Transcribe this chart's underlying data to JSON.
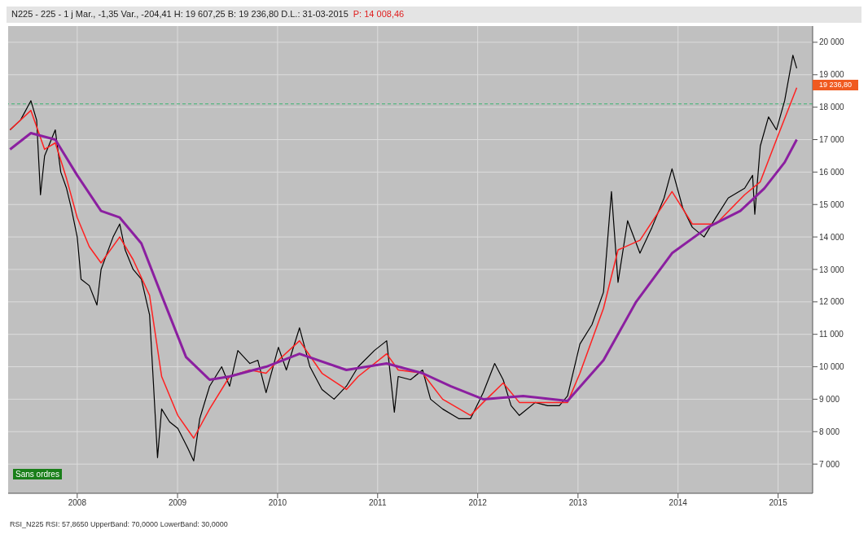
{
  "chart_data": {
    "type": "line",
    "title": "N225 - 225 - 1 j Mar., -1,35 Var., -204,41 H: 19 607,25 B: 19 236,80 D.L.: 31-03-2015",
    "subtitle": "P: 14 008,46",
    "xlim": [
      "2007-04-24",
      "2015-05-07"
    ],
    "xticks": [
      {
        "value": "2008-01-01",
        "label": "2008"
      },
      {
        "value": "2009-01-01",
        "label": "2009"
      },
      {
        "value": "2010-01-01",
        "label": "2010"
      },
      {
        "value": "2011-01-01",
        "label": "2011"
      },
      {
        "value": "2012-01-01",
        "label": "2012"
      },
      {
        "value": "2013-01-01",
        "label": "2013"
      },
      {
        "value": "2014-01-01",
        "label": "2014"
      },
      {
        "value": "2015-01-01",
        "label": "2015"
      }
    ],
    "ylim": [
      6100,
      20500
    ],
    "yticks": [
      {
        "value": 7000,
        "label": "7 000"
      },
      {
        "value": 8000,
        "label": "8 000"
      },
      {
        "value": 9000,
        "label": "9 000"
      },
      {
        "value": 10000,
        "label": "10 000"
      },
      {
        "value": 11000,
        "label": "11 000"
      },
      {
        "value": 12000,
        "label": "12 000"
      },
      {
        "value": 13000,
        "label": "13 000"
      },
      {
        "value": 14000,
        "label": "14 000"
      },
      {
        "value": 15000,
        "label": "15 000"
      },
      {
        "value": 16000,
        "label": "16 000"
      },
      {
        "value": 17000,
        "label": "17 000"
      },
      {
        "value": 18000,
        "label": "18 000"
      },
      {
        "value": 19000,
        "label": "19 000"
      },
      {
        "value": 20000,
        "label": "20 000"
      }
    ],
    "grid": true,
    "ref_lines": [
      {
        "axis": "y",
        "value": 18100,
        "color": "#3cb371",
        "line_style": "dashed"
      }
    ],
    "annotations": [
      "Sans ordres",
      "RSI_N225 RSI: 57,8650 UpperBand: 70,0000 LowerBand: 30,0000",
      "19 236,80"
    ],
    "series": [
      {
        "color": "#000000",
        "x": [
          "2007-05-01",
          "2007-06-08",
          "2007-07-16",
          "2007-08-06",
          "2007-08-20",
          "2007-09-04",
          "2007-10-13",
          "2007-11-02",
          "2007-11-23",
          "2007-12-10",
          "2008-01-01",
          "2008-01-15",
          "2008-02-14",
          "2008-03-13",
          "2008-03-28",
          "2008-05-11",
          "2008-06-04",
          "2008-06-24",
          "2008-07-23",
          "2008-08-22",
          "2008-09-21",
          "2008-10-05",
          "2008-10-20",
          "2008-11-04",
          "2008-12-03",
          "2009-01-02",
          "2009-02-07",
          "2009-03-01",
          "2009-03-23",
          "2009-04-28",
          "2009-06-11",
          "2009-07-10",
          "2009-08-09",
          "2009-09-22",
          "2009-10-21",
          "2009-11-20",
          "2010-01-04",
          "2010-02-02",
          "2010-03-22",
          "2010-04-29",
          "2010-06-12",
          "2010-07-26",
          "2010-09-09",
          "2010-10-22",
          "2010-12-20",
          "2011-02-03",
          "2011-03-03",
          "2011-03-17",
          "2011-05-01",
          "2011-06-14",
          "2011-07-13",
          "2011-08-26",
          "2011-10-24",
          "2011-12-06",
          "2012-01-21",
          "2012-03-03",
          "2012-04-03",
          "2012-05-02",
          "2012-06-01",
          "2012-07-29",
          "2012-09-12",
          "2012-10-25",
          "2012-11-24",
          "2013-01-08",
          "2013-02-21",
          "2013-04-04",
          "2013-05-03",
          "2013-05-27",
          "2013-07-01",
          "2013-08-15",
          "2013-09-28",
          "2013-11-11",
          "2013-12-10",
          "2014-01-18",
          "2014-02-22",
          "2014-04-06",
          "2014-05-19",
          "2014-07-03",
          "2014-09-01",
          "2014-09-30",
          "2014-10-08",
          "2014-10-28",
          "2014-11-27",
          "2014-12-26",
          "2015-01-25",
          "2015-02-24",
          "2015-03-10"
        ],
        "values": [
          17300,
          17600,
          18200,
          17600,
          15300,
          16500,
          17300,
          16000,
          15500,
          14900,
          14000,
          12700,
          12500,
          11900,
          13000,
          14000,
          14400,
          13600,
          13000,
          12700,
          11600,
          9500,
          7200,
          8700,
          8300,
          8100,
          7500,
          7100,
          8400,
          9400,
          10000,
          9400,
          10500,
          10100,
          10200,
          9200,
          10600,
          9900,
          11200,
          10000,
          9300,
          9000,
          9400,
          10000,
          10500,
          10800,
          8600,
          9700,
          9600,
          9900,
          9000,
          8700,
          8400,
          8400,
          9200,
          10100,
          9600,
          8800,
          8500,
          8900,
          8800,
          8800,
          9100,
          10700,
          11300,
          12300,
          15400,
          12600,
          14500,
          13500,
          14300,
          15200,
          16100,
          14900,
          14300,
          14000,
          14600,
          15200,
          15500,
          15900,
          14700,
          16800,
          17700,
          17300,
          18200,
          19600,
          19200
        ]
      },
      {
        "color": "#ff2020",
        "x": [
          "2007-05-01",
          "2007-07-16",
          "2007-09-04",
          "2007-10-13",
          "2007-11-23",
          "2008-01-01",
          "2008-02-14",
          "2008-03-28",
          "2008-06-04",
          "2008-07-23",
          "2008-09-21",
          "2008-11-04",
          "2009-01-02",
          "2009-03-01",
          "2009-04-28",
          "2009-07-10",
          "2009-09-22",
          "2009-11-20",
          "2010-01-04",
          "2010-03-22",
          "2010-06-12",
          "2010-09-09",
          "2010-10-22",
          "2011-02-03",
          "2011-03-17",
          "2011-06-14",
          "2011-08-26",
          "2011-12-06",
          "2012-01-21",
          "2012-04-03",
          "2012-06-01",
          "2012-09-12",
          "2012-11-24",
          "2013-01-08",
          "2013-04-04",
          "2013-05-27",
          "2013-08-15",
          "2013-12-10",
          "2014-02-22",
          "2014-05-19",
          "2014-09-01",
          "2014-10-28",
          "2014-12-26",
          "2015-03-10"
        ],
        "values": [
          17300,
          17900,
          16700,
          16900,
          15800,
          14600,
          13700,
          13200,
          14000,
          13300,
          12200,
          9700,
          8500,
          7800,
          8700,
          9700,
          9900,
          9800,
          10200,
          10800,
          9800,
          9300,
          9700,
          10400,
          9900,
          9800,
          9000,
          8500,
          8900,
          9500,
          8900,
          8900,
          8900,
          9800,
          11800,
          13600,
          13900,
          15400,
          14400,
          14400,
          15300,
          15700,
          17000,
          18600
        ]
      },
      {
        "color": "#8b1fa0",
        "x": [
          "2007-05-01",
          "2007-07-16",
          "2007-10-13",
          "2008-01-01",
          "2008-03-28",
          "2008-06-04",
          "2008-08-22",
          "2008-11-04",
          "2009-02-01",
          "2009-04-28",
          "2009-07-10",
          "2009-11-20",
          "2010-03-22",
          "2010-09-09",
          "2011-02-03",
          "2011-06-14",
          "2011-09-24",
          "2012-01-21",
          "2012-06-15",
          "2012-11-24",
          "2013-04-04",
          "2013-08-01",
          "2013-12-10",
          "2014-04-20",
          "2014-08-16",
          "2014-11-12",
          "2015-01-25",
          "2015-03-10"
        ],
        "values": [
          16700,
          17200,
          17000,
          15900,
          14800,
          14600,
          13800,
          12200,
          10300,
          9600,
          9700,
          10000,
          10400,
          9900,
          10100,
          9800,
          9400,
          9000,
          9100,
          8950,
          10200,
          12000,
          13500,
          14300,
          14800,
          15500,
          16300,
          17000
        ]
      }
    ]
  }
}
